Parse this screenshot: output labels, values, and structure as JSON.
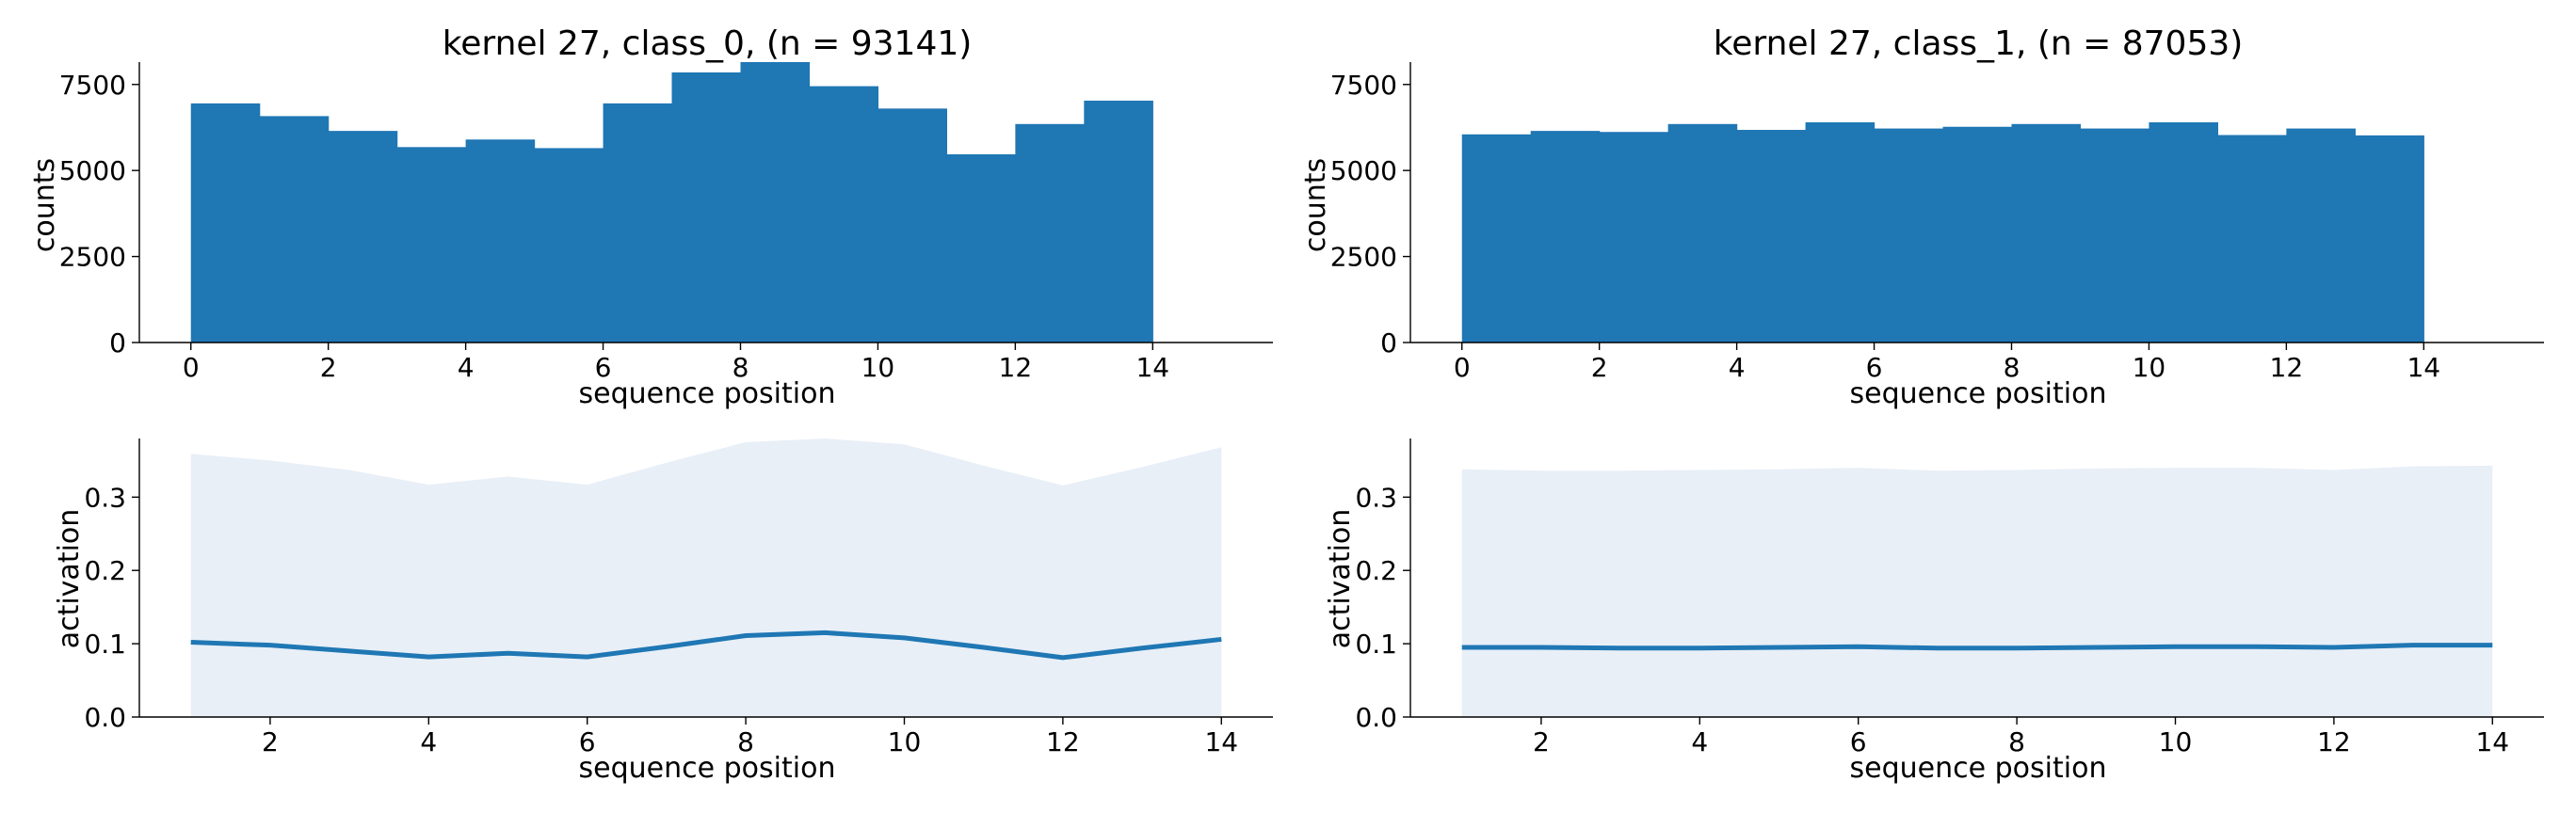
{
  "colors": {
    "bar": "#1f77b4",
    "line": "#1f77b4",
    "band": "#e8eff7",
    "axis": "#000000"
  },
  "chart_data": [
    {
      "type": "bar",
      "title": "kernel 27, class_0, (n = 93141)",
      "xlabel": "sequence position",
      "ylabel": "counts",
      "bin_edges": [
        0,
        1,
        2,
        3,
        4,
        5,
        6,
        7,
        8,
        9,
        10,
        11,
        12,
        13,
        14
      ],
      "values": [
        6950,
        6580,
        6150,
        5680,
        5900,
        5650,
        6950,
        7850,
        8150,
        7450,
        6800,
        5470,
        6350,
        7030
      ],
      "xlim": [
        -0.75,
        15.75
      ],
      "ylim": [
        0,
        8150
      ],
      "xticks": [
        0,
        2,
        4,
        6,
        8,
        10,
        12,
        14
      ],
      "yticks": [
        0,
        2500,
        5000,
        7500
      ]
    },
    {
      "type": "bar",
      "title": "kernel 27, class_1, (n = 87053)",
      "xlabel": "sequence position",
      "ylabel": "counts",
      "bin_edges": [
        0,
        1,
        2,
        3,
        4,
        5,
        6,
        7,
        8,
        9,
        10,
        11,
        12,
        13,
        14
      ],
      "values": [
        6050,
        6150,
        6120,
        6350,
        6180,
        6400,
        6220,
        6270,
        6350,
        6220,
        6400,
        6030,
        6220,
        6020
      ],
      "xlim": [
        -0.75,
        15.75
      ],
      "ylim": [
        0,
        8150
      ],
      "xticks": [
        0,
        2,
        4,
        6,
        8,
        10,
        12,
        14
      ],
      "yticks": [
        0,
        2500,
        5000,
        7500
      ]
    },
    {
      "type": "area",
      "title": "",
      "xlabel": "sequence position",
      "ylabel": "activation",
      "x": [
        1,
        2,
        3,
        4,
        5,
        6,
        7,
        8,
        9,
        10,
        11,
        12,
        13,
        14
      ],
      "mean": [
        0.102,
        0.098,
        0.09,
        0.082,
        0.087,
        0.082,
        0.096,
        0.111,
        0.115,
        0.108,
        0.095,
        0.081,
        0.094,
        0.106
      ],
      "upper": [
        0.359,
        0.35,
        0.337,
        0.317,
        0.328,
        0.317,
        0.347,
        0.375,
        0.38,
        0.372,
        0.343,
        0.316,
        0.341,
        0.368
      ],
      "lower": [
        0,
        0,
        0,
        0,
        0,
        0,
        0,
        0,
        0,
        0,
        0,
        0,
        0,
        0
      ],
      "xlim": [
        0.35,
        14.65
      ],
      "ylim": [
        0,
        0.38
      ],
      "xticks": [
        2,
        4,
        6,
        8,
        10,
        12,
        14
      ],
      "yticks": [
        0.0,
        0.1,
        0.2,
        0.3
      ],
      "ytick_labels": [
        "0.0",
        "0.1",
        "0.2",
        "0.3"
      ]
    },
    {
      "type": "area",
      "title": "",
      "xlabel": "sequence position",
      "ylabel": "activation",
      "x": [
        1,
        2,
        3,
        4,
        5,
        6,
        7,
        8,
        9,
        10,
        11,
        12,
        13,
        14
      ],
      "mean": [
        0.095,
        0.095,
        0.094,
        0.094,
        0.095,
        0.096,
        0.094,
        0.094,
        0.095,
        0.096,
        0.096,
        0.095,
        0.098,
        0.098
      ],
      "upper": [
        0.338,
        0.336,
        0.336,
        0.337,
        0.338,
        0.34,
        0.336,
        0.337,
        0.339,
        0.34,
        0.34,
        0.337,
        0.342,
        0.343
      ],
      "lower": [
        0,
        0,
        0,
        0,
        0,
        0,
        0,
        0,
        0,
        0,
        0,
        0,
        0,
        0
      ],
      "xlim": [
        0.35,
        14.65
      ],
      "ylim": [
        0,
        0.38
      ],
      "xticks": [
        2,
        4,
        6,
        8,
        10,
        12,
        14
      ],
      "yticks": [
        0.0,
        0.1,
        0.2,
        0.3
      ],
      "ytick_labels": [
        "0.0",
        "0.1",
        "0.2",
        "0.3"
      ]
    }
  ]
}
